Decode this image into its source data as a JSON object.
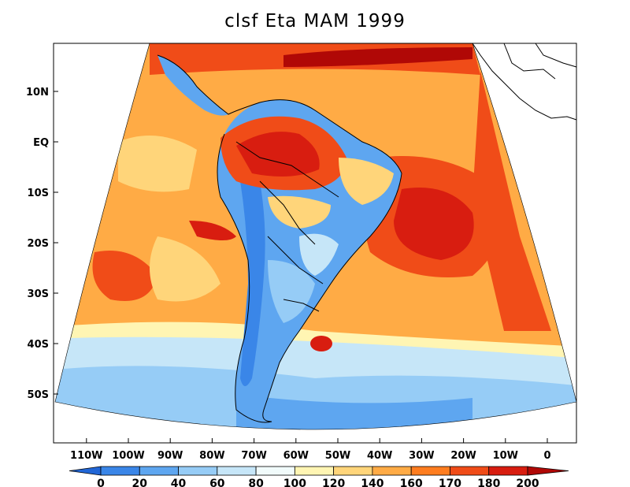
{
  "title": "clsf Eta MAM 1999",
  "map": {
    "lat_labels": [
      "10N",
      "EQ",
      "10S",
      "20S",
      "30S",
      "40S",
      "50S"
    ],
    "lat_values": [
      10,
      0,
      -10,
      -20,
      -30,
      -40,
      -50
    ],
    "lon_labels": [
      "110W",
      "100W",
      "90W",
      "80W",
      "70W",
      "60W",
      "50W",
      "40W",
      "30W",
      "20W",
      "10W",
      "0"
    ],
    "lon_values": [
      -110,
      -100,
      -90,
      -80,
      -70,
      -60,
      -50,
      -40,
      -30,
      -20,
      -10,
      0
    ]
  },
  "colorbar": {
    "levels": [
      0,
      20,
      40,
      60,
      80,
      100,
      120,
      140,
      160,
      170,
      180,
      200
    ],
    "labels": [
      "0",
      "20",
      "40",
      "60",
      "80",
      "100",
      "120",
      "140",
      "160",
      "170",
      "180",
      "200"
    ],
    "colors": [
      "#2166d6",
      "#3a86e8",
      "#5ea6f0",
      "#96ccf6",
      "#c6e6f8",
      "#f1fbfb",
      "#fff5b3",
      "#ffd57a",
      "#ffab45",
      "#ff7d1f",
      "#f04c18",
      "#d81d10",
      "#b00806"
    ]
  },
  "palette": {
    "land_blue": "#5ea6f0",
    "ocean_orange": "#ffab45",
    "hot_red": "#f04c18",
    "dark_red": "#b00806",
    "pale": "#c6e6f8"
  }
}
